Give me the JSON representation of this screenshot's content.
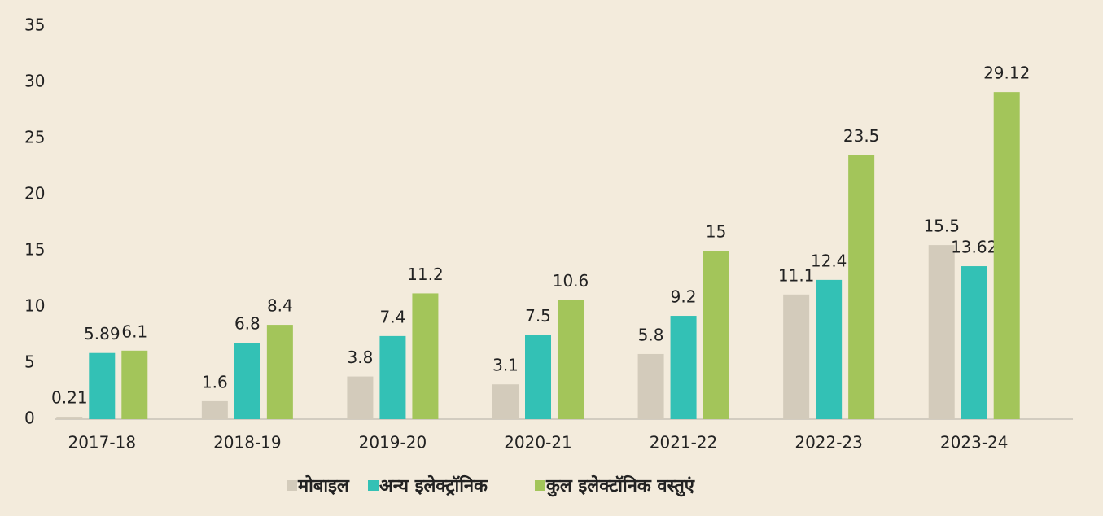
{
  "chart_data": {
    "type": "bar",
    "categories": [
      "2017-18",
      "2018-19",
      "2019-20",
      "2020-21",
      "2021-22",
      "2022-23",
      "2023-24"
    ],
    "series": [
      {
        "name": "मोबाइल",
        "color": "#d3cbbb",
        "values": [
          0.21,
          1.6,
          3.8,
          3.1,
          5.8,
          11.1,
          15.5
        ]
      },
      {
        "name": "अन्य इलेक्ट्रॉनिक",
        "color": "#33c1b5",
        "values": [
          5.89,
          6.8,
          7.4,
          7.5,
          9.2,
          12.4,
          13.62
        ]
      },
      {
        "name": "कुल इलेक्टॉनिक वस्तुएं",
        "color": "#a3c55a",
        "values": [
          6.1,
          8.4,
          11.2,
          10.6,
          15,
          23.5,
          29.12
        ]
      }
    ],
    "ylim": [
      0,
      35
    ],
    "yticks": [
      0,
      5,
      10,
      15,
      20,
      25,
      30,
      35
    ],
    "grid": false,
    "legend": "bottom"
  }
}
